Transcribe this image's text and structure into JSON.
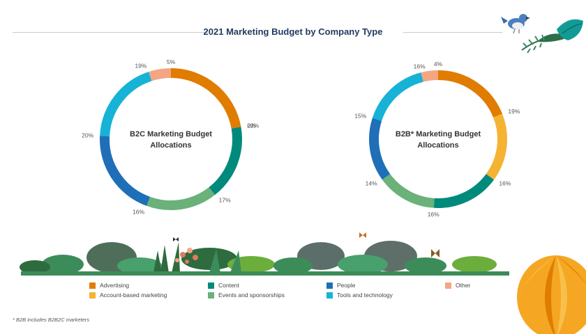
{
  "title": "2021 Marketing Budget by Company Type",
  "footnote": "* B2B includes B2B2C marketers",
  "colors": {
    "title": "#1f3a5f",
    "rule": "#c8c8c8"
  },
  "decor": {
    "bird": "bird-icon",
    "foliage": "foliage-illustration",
    "balloon": "hot-air-balloon-icon",
    "butterfly": "butterfly-icon"
  },
  "legend": [
    {
      "label": "Advertising",
      "color": "#e07c00"
    },
    {
      "label": "Account-based marketing",
      "color": "#f5b333"
    },
    {
      "label": "Content",
      "color": "#008a7c"
    },
    {
      "label": "Events and sponsorships",
      "color": "#6ab17a"
    },
    {
      "label": "People",
      "color": "#1f6fb8"
    },
    {
      "label": "Tools and technology",
      "color": "#16b3d6"
    },
    {
      "label": "Other",
      "color": "#f4a683"
    }
  ],
  "chart_data": [
    {
      "type": "pie",
      "title": "B2C Marketing Budget Allocations",
      "categories": [
        "Advertising",
        "Account-based marketing",
        "Content",
        "Events and sponsorships",
        "People",
        "Tools and technology",
        "Other"
      ],
      "values": [
        22,
        0,
        17,
        16,
        20,
        19,
        5
      ],
      "labels": [
        "22%",
        "0%",
        "17%",
        "16%",
        "20%",
        "19%",
        "5%"
      ]
    },
    {
      "type": "pie",
      "title": "B2B* Marketing Budget Allocations",
      "categories": [
        "Advertising",
        "Account-based marketing",
        "Content",
        "Events and sponsorships",
        "People",
        "Tools and technology",
        "Other"
      ],
      "values": [
        19,
        16,
        16,
        14,
        15,
        16,
        4
      ],
      "labels": [
        "19%",
        "16%",
        "16%",
        "14%",
        "15%",
        "16%",
        "4%"
      ]
    }
  ]
}
